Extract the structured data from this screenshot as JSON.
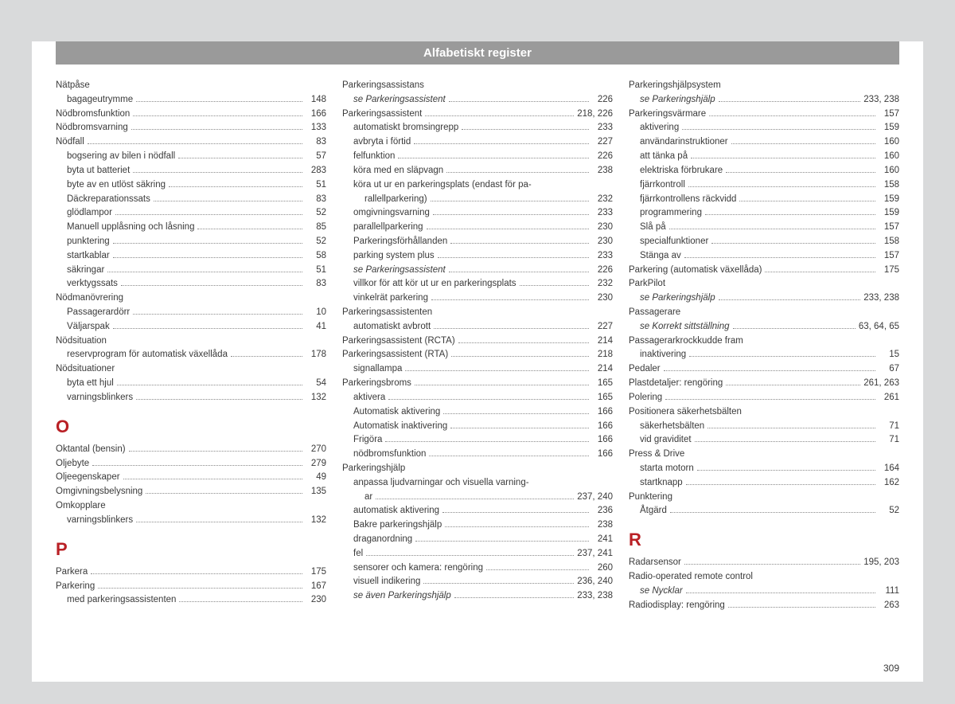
{
  "header": "Alfabetiskt register",
  "pageNumber": "309",
  "columns": [
    [
      {
        "t": "entry",
        "label": "Nätpåse"
      },
      {
        "t": "sub",
        "label": "bagageutrymme",
        "pg": "148"
      },
      {
        "t": "entry",
        "label": "Nödbromsfunktion",
        "pg": "166"
      },
      {
        "t": "entry",
        "label": "Nödbromsvarning",
        "pg": "133"
      },
      {
        "t": "entry",
        "label": "Nödfall",
        "pg": "83"
      },
      {
        "t": "sub",
        "label": "bogsering av bilen i nödfall",
        "pg": "57"
      },
      {
        "t": "sub",
        "label": "byta ut batteriet",
        "pg": "283"
      },
      {
        "t": "sub",
        "label": "byte av en utlöst säkring",
        "pg": "51"
      },
      {
        "t": "sub",
        "label": "Däckreparationssats",
        "pg": "83"
      },
      {
        "t": "sub",
        "label": "glödlampor",
        "pg": "52"
      },
      {
        "t": "sub",
        "label": "Manuell upplåsning och låsning",
        "pg": "85"
      },
      {
        "t": "sub",
        "label": "punktering",
        "pg": "52"
      },
      {
        "t": "sub",
        "label": "startkablar",
        "pg": "58"
      },
      {
        "t": "sub",
        "label": "säkringar",
        "pg": "51"
      },
      {
        "t": "sub",
        "label": "verktygssats",
        "pg": "83"
      },
      {
        "t": "entry",
        "label": "Nödmanövrering"
      },
      {
        "t": "sub",
        "label": "Passagerardörr",
        "pg": "10"
      },
      {
        "t": "sub",
        "label": "Väljarspak",
        "pg": "41"
      },
      {
        "t": "entry",
        "label": "Nödsituation"
      },
      {
        "t": "sub",
        "label": "reservprogram för automatisk växellåda",
        "pg": "178"
      },
      {
        "t": "entry",
        "label": "Nödsituationer"
      },
      {
        "t": "sub",
        "label": "byta ett hjul",
        "pg": "54"
      },
      {
        "t": "sub",
        "label": "varningsblinkers",
        "pg": "132"
      },
      {
        "t": "letter",
        "label": "O"
      },
      {
        "t": "entry",
        "label": "Oktantal (bensin)",
        "pg": "270"
      },
      {
        "t": "entry",
        "label": "Oljebyte",
        "pg": "279"
      },
      {
        "t": "entry",
        "label": "Oljeegenskaper",
        "pg": "49"
      },
      {
        "t": "entry",
        "label": "Omgivningsbelysning",
        "pg": "135"
      },
      {
        "t": "entry",
        "label": "Omkopplare"
      },
      {
        "t": "sub",
        "label": "varningsblinkers",
        "pg": "132"
      },
      {
        "t": "letter",
        "label": "P"
      },
      {
        "t": "entry",
        "label": "Parkera",
        "pg": "175"
      },
      {
        "t": "entry",
        "label": "Parkering",
        "pg": "167"
      },
      {
        "t": "sub",
        "label": "med parkeringsassistenten",
        "pg": "230"
      }
    ],
    [
      {
        "t": "entry",
        "label": "Parkeringsassistans"
      },
      {
        "t": "sub",
        "label": "se Parkeringsassistent",
        "italic": true,
        "pg": "226"
      },
      {
        "t": "entry",
        "label": "Parkeringsassistent",
        "pg": "218, 226"
      },
      {
        "t": "sub",
        "label": "automatiskt bromsingrepp",
        "pg": "233"
      },
      {
        "t": "sub",
        "label": "avbryta i förtid",
        "pg": "227"
      },
      {
        "t": "sub",
        "label": "felfunktion",
        "pg": "226"
      },
      {
        "t": "sub",
        "label": "köra med en släpvagn",
        "pg": "238"
      },
      {
        "t": "sub",
        "label": "köra ut ur en parkeringsplats (endast för pa-"
      },
      {
        "t": "subsub",
        "label": "rallellparkering)",
        "pg": "232"
      },
      {
        "t": "sub",
        "label": "omgivningsvarning",
        "pg": "233"
      },
      {
        "t": "sub",
        "label": "parallellparkering",
        "pg": "230"
      },
      {
        "t": "sub",
        "label": "Parkeringsförhållanden",
        "pg": "230"
      },
      {
        "t": "sub",
        "label": "parking system plus",
        "pg": "233"
      },
      {
        "t": "sub",
        "label": "se Parkeringsassistent",
        "italic": true,
        "pg": "226"
      },
      {
        "t": "sub",
        "label": "villkor för att kör ut ur en parkeringsplats",
        "pg": "232"
      },
      {
        "t": "sub",
        "label": "vinkelrät parkering",
        "pg": "230"
      },
      {
        "t": "entry",
        "label": "Parkeringsassistenten"
      },
      {
        "t": "sub",
        "label": "automatiskt avbrott",
        "pg": "227"
      },
      {
        "t": "entry",
        "label": "Parkeringsassistent (RCTA)",
        "pg": "214"
      },
      {
        "t": "entry",
        "label": "Parkeringsassistent (RTA)",
        "pg": "218"
      },
      {
        "t": "sub",
        "label": "signallampa",
        "pg": "214"
      },
      {
        "t": "entry",
        "label": "Parkeringsbroms",
        "pg": "165"
      },
      {
        "t": "sub",
        "label": "aktivera",
        "pg": "165"
      },
      {
        "t": "sub",
        "label": "Automatisk aktivering",
        "pg": "166"
      },
      {
        "t": "sub",
        "label": "Automatisk inaktivering",
        "pg": "166"
      },
      {
        "t": "sub",
        "label": "Frigöra",
        "pg": "166"
      },
      {
        "t": "sub",
        "label": "nödbromsfunktion",
        "pg": "166"
      },
      {
        "t": "entry",
        "label": "Parkeringshjälp"
      },
      {
        "t": "sub",
        "label": "anpassa ljudvarningar och visuella varning-"
      },
      {
        "t": "subsub",
        "label": "ar",
        "pg": "237, 240"
      },
      {
        "t": "sub",
        "label": "automatisk aktivering",
        "pg": "236"
      },
      {
        "t": "sub",
        "label": "Bakre parkeringshjälp",
        "pg": "238"
      },
      {
        "t": "sub",
        "label": "draganordning",
        "pg": "241"
      },
      {
        "t": "sub",
        "label": "fel",
        "pg": "237, 241"
      },
      {
        "t": "sub",
        "label": "sensorer och kamera: rengöring",
        "pg": "260"
      },
      {
        "t": "sub",
        "label": "visuell indikering",
        "pg": "236, 240"
      },
      {
        "t": "sub",
        "label": "se även Parkeringshjälp",
        "italic": true,
        "pg": "233, 238"
      }
    ],
    [
      {
        "t": "entry",
        "label": "Parkeringshjälpsystem"
      },
      {
        "t": "sub",
        "label": "se Parkeringshjälp",
        "italic": true,
        "pg": "233, 238"
      },
      {
        "t": "entry",
        "label": "Parkeringsvärmare",
        "pg": "157"
      },
      {
        "t": "sub",
        "label": "aktivering",
        "pg": "159"
      },
      {
        "t": "sub",
        "label": "användarinstruktioner",
        "pg": "160"
      },
      {
        "t": "sub",
        "label": "att tänka på",
        "pg": "160"
      },
      {
        "t": "sub",
        "label": "elektriska förbrukare",
        "pg": "160"
      },
      {
        "t": "sub",
        "label": "fjärrkontroll",
        "pg": "158"
      },
      {
        "t": "sub",
        "label": "fjärrkontrollens räckvidd",
        "pg": "159"
      },
      {
        "t": "sub",
        "label": "programmering",
        "pg": "159"
      },
      {
        "t": "sub",
        "label": "Slå på",
        "pg": "157"
      },
      {
        "t": "sub",
        "label": "specialfunktioner",
        "pg": "158"
      },
      {
        "t": "sub",
        "label": "Stänga av",
        "pg": "157"
      },
      {
        "t": "entry",
        "label": "Parkering (automatisk växellåda)",
        "pg": "175"
      },
      {
        "t": "entry",
        "label": "ParkPilot"
      },
      {
        "t": "sub",
        "label": "se Parkeringshjälp",
        "italic": true,
        "pg": "233, 238"
      },
      {
        "t": "entry",
        "label": "Passagerare"
      },
      {
        "t": "sub",
        "label": "se Korrekt sittställning",
        "italic": true,
        "pg": "63, 64, 65"
      },
      {
        "t": "entry",
        "label": "Passagerarkrockkudde fram"
      },
      {
        "t": "sub",
        "label": "inaktivering",
        "pg": "15"
      },
      {
        "t": "entry",
        "label": "Pedaler",
        "pg": "67"
      },
      {
        "t": "entry",
        "label": "Plastdetaljer: rengöring",
        "pg": "261, 263"
      },
      {
        "t": "entry",
        "label": "Polering",
        "pg": "261"
      },
      {
        "t": "entry",
        "label": "Positionera säkerhetsbälten"
      },
      {
        "t": "sub",
        "label": "säkerhetsbälten",
        "pg": "71"
      },
      {
        "t": "sub",
        "label": "vid graviditet",
        "pg": "71"
      },
      {
        "t": "entry",
        "label": "Press & Drive"
      },
      {
        "t": "sub",
        "label": "starta motorn",
        "pg": "164"
      },
      {
        "t": "sub",
        "label": "startknapp",
        "pg": "162"
      },
      {
        "t": "entry",
        "label": "Punktering"
      },
      {
        "t": "sub",
        "label": "Åtgärd",
        "pg": "52"
      },
      {
        "t": "letter",
        "label": "R"
      },
      {
        "t": "entry",
        "label": "Radarsensor",
        "pg": "195, 203"
      },
      {
        "t": "entry",
        "label": "Radio-operated remote control"
      },
      {
        "t": "sub",
        "label": "se Nycklar",
        "italic": true,
        "pg": "111"
      },
      {
        "t": "entry",
        "label": "Radiodisplay: rengöring",
        "pg": "263"
      }
    ]
  ]
}
